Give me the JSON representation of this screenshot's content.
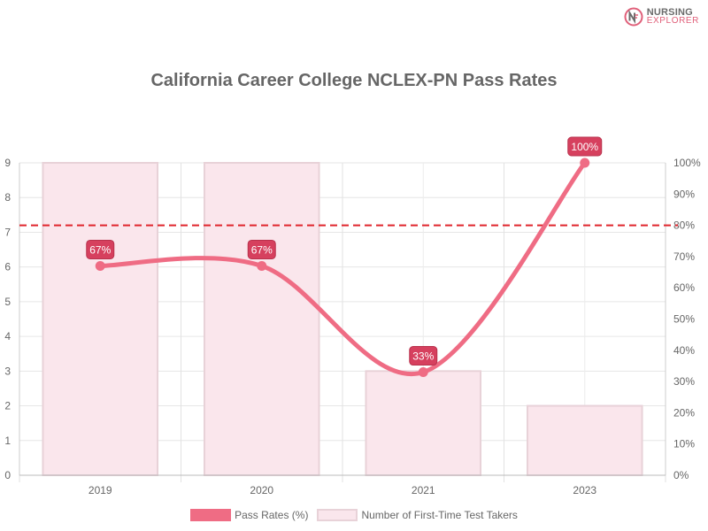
{
  "brand": {
    "line1": "NURSING",
    "line2": "EXPLORER",
    "logo_icon": "nursing-explorer-logo-icon"
  },
  "chart_data": {
    "type": "bar",
    "title": "California Career College NCLEX-PN Pass Rates",
    "categories": [
      "2019",
      "2020",
      "2021",
      "2023"
    ],
    "series": [
      {
        "name": "Pass Rates (%)",
        "type": "line",
        "axis": "right",
        "values": [
          67,
          67,
          33,
          100
        ],
        "labels": [
          "67%",
          "67%",
          "33%",
          "100%"
        ],
        "color": "#ef6c84"
      },
      {
        "name": "Number of First-Time Test Takers",
        "type": "bar",
        "axis": "left",
        "values": [
          9,
          9,
          3,
          2
        ],
        "color": "#fae6ec",
        "border_color": "#e8d2d8"
      }
    ],
    "y_left": {
      "range": [
        0,
        9
      ],
      "ticks": [
        "0",
        "1",
        "2",
        "3",
        "4",
        "5",
        "6",
        "7",
        "8",
        "9"
      ]
    },
    "y_right": {
      "range": [
        0,
        100
      ],
      "ticks": [
        "0%",
        "10%",
        "20%",
        "30%",
        "40%",
        "50%",
        "60%",
        "70%",
        "80%",
        "90%",
        "100%"
      ]
    },
    "reference_line": {
      "value": 80,
      "axis": "right",
      "style": "dashed",
      "color": "#e0252c"
    },
    "grid": true,
    "legend_position": "bottom",
    "label_color": "#d6405e"
  }
}
